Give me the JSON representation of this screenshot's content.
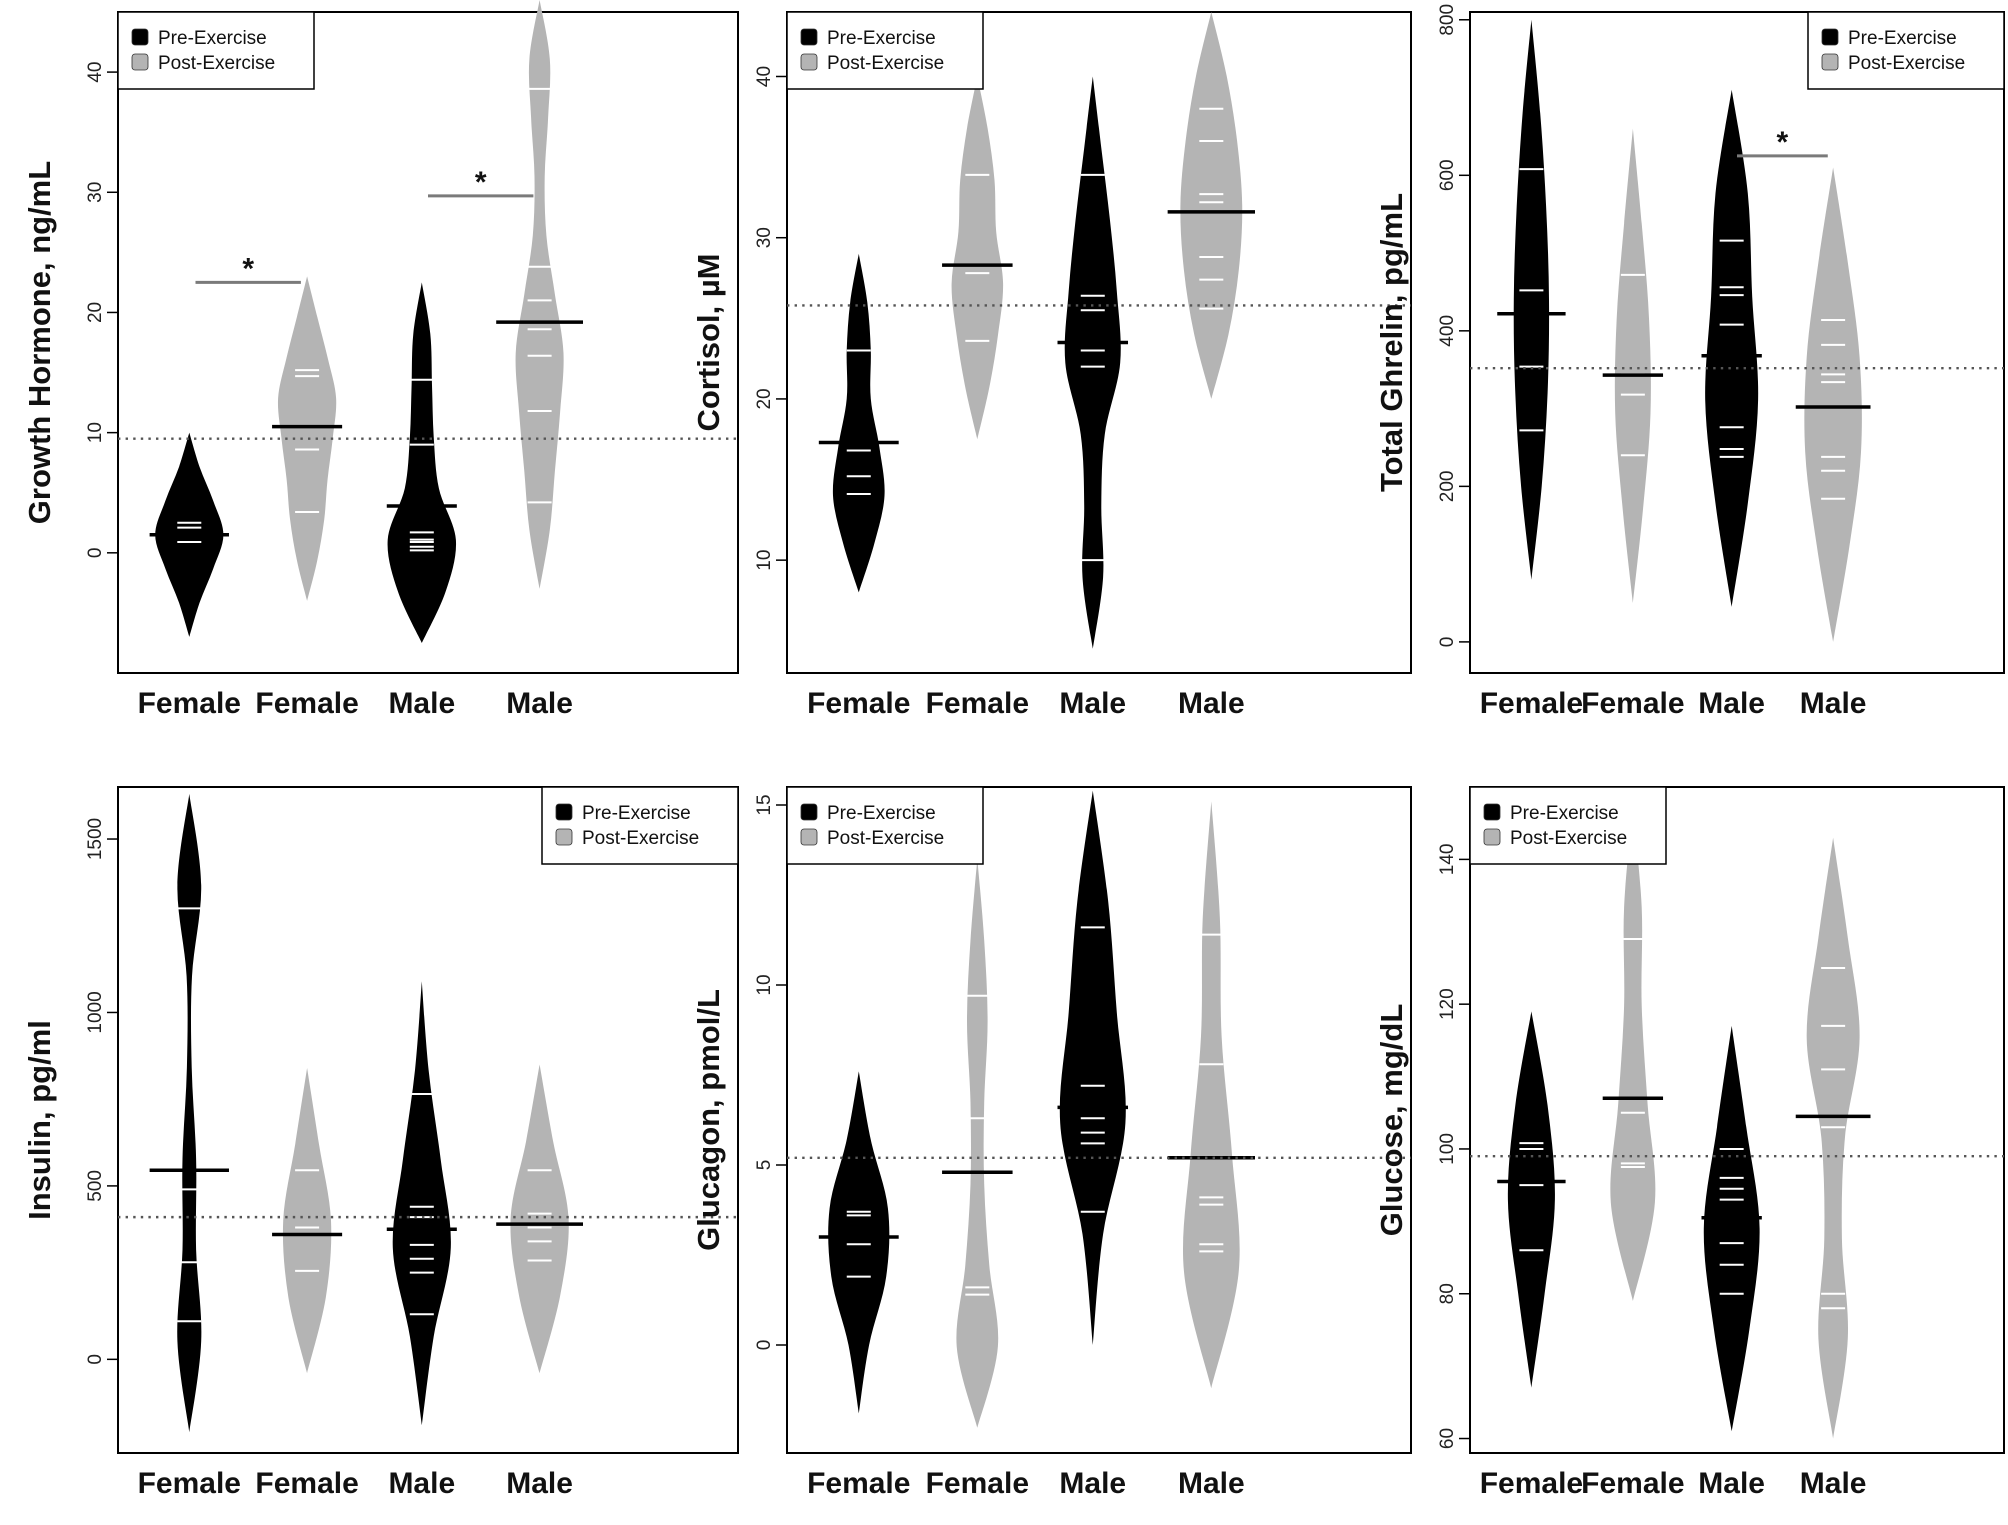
{
  "colors": {
    "pre": "#000000",
    "post": "#b4b4b4",
    "point_line": "#ffffff",
    "grand_mean": "#555555",
    "axis": "#000000"
  },
  "chart_data": [
    {
      "type": "beanplot",
      "ylabel": "Growth Hormone, ng/mL",
      "ylim": [
        -10,
        45
      ],
      "yticks": [
        0,
        10,
        20,
        30,
        40
      ],
      "legend": {
        "position": "top-left",
        "entries": [
          "Pre-Exercise",
          "Post-Exercise"
        ]
      },
      "grand_mean": 9.5,
      "categories": [
        "Female",
        "Female",
        "Male",
        "Male"
      ],
      "beans": [
        {
          "group": "Pre-Exercise",
          "mean": 1.5,
          "points": [
            0.9,
            1.5,
            2.1,
            2.5
          ],
          "range": [
            -7,
            10
          ],
          "shape": [
            0.1,
            0.3,
            0.7,
            1.0,
            0.7,
            0.3,
            0.1
          ]
        },
        {
          "group": "Post-Exercise",
          "mean": 10.5,
          "points": [
            3.4,
            8.6,
            14.7,
            15.2
          ],
          "range": [
            -4,
            23
          ],
          "shape": [
            0.1,
            0.3,
            0.5,
            0.6,
            0.75,
            0.85,
            0.6,
            0.3,
            0.1
          ]
        },
        {
          "group": "Pre-Exercise",
          "mean": 3.9,
          "points": [
            0.2,
            0.5,
            0.9,
            1.1,
            1.7,
            9.0,
            14.4
          ],
          "range": [
            -7.5,
            22.5
          ],
          "shape": [
            0.1,
            0.7,
            1.0,
            0.5,
            0.35,
            0.3,
            0.25,
            0.1
          ]
        },
        {
          "group": "Post-Exercise",
          "mean": 19.2,
          "points": [
            4.2,
            11.8,
            16.4,
            18.6,
            21.0,
            23.8,
            38.6
          ],
          "range": [
            -3,
            46
          ],
          "shape": [
            0.1,
            0.3,
            0.45,
            0.6,
            0.7,
            0.45,
            0.2,
            0.15,
            0.25,
            0.3,
            0.15
          ]
        }
      ],
      "significance": [
        {
          "between": [
            0,
            1
          ],
          "y": 22.5,
          "label": "*"
        },
        {
          "between": [
            2,
            3
          ],
          "y": 29.7,
          "label": "*"
        }
      ]
    },
    {
      "type": "beanplot",
      "ylabel": "Cortisol, µM",
      "ylim": [
        3,
        44
      ],
      "yticks": [
        10,
        20,
        30,
        40
      ],
      "legend": {
        "position": "top-left",
        "entries": [
          "Pre-Exercise",
          "Post-Exercise"
        ]
      },
      "grand_mean": 25.8,
      "categories": [
        "Female",
        "Female",
        "Male",
        "Male"
      ],
      "beans": [
        {
          "group": "Pre-Exercise",
          "mean": 17.3,
          "points": [
            14.1,
            15.2,
            16.8,
            23.0
          ],
          "range": [
            8,
            29
          ],
          "shape": [
            0.1,
            0.45,
            0.75,
            0.6,
            0.35,
            0.35,
            0.25,
            0.1
          ]
        },
        {
          "group": "Post-Exercise",
          "mean": 28.3,
          "points": [
            23.6,
            27.8,
            33.9
          ],
          "range": [
            17.5,
            40
          ],
          "shape": [
            0.1,
            0.35,
            0.6,
            0.75,
            0.55,
            0.5,
            0.3,
            0.1
          ]
        },
        {
          "group": "Pre-Exercise",
          "mean": 23.5,
          "points": [
            10.0,
            22.0,
            23.0,
            25.5,
            26.4,
            33.9
          ],
          "range": [
            4.5,
            40
          ],
          "shape": [
            0.1,
            0.3,
            0.25,
            0.35,
            0.8,
            0.7,
            0.5,
            0.25,
            0.1
          ]
        },
        {
          "group": "Post-Exercise",
          "mean": 31.6,
          "points": [
            25.6,
            27.4,
            28.8,
            32.2,
            32.7,
            36.0,
            38.0
          ],
          "range": [
            20,
            44
          ],
          "shape": [
            0.1,
            0.5,
            0.8,
            0.9,
            0.75,
            0.45,
            0.15
          ]
        }
      ],
      "significance": []
    },
    {
      "type": "beanplot",
      "ylabel": "Total Ghrelin, pg/mL",
      "ylim": [
        -40,
        810
      ],
      "yticks": [
        0,
        200,
        400,
        600,
        800
      ],
      "legend": {
        "position": "top-right",
        "entries": [
          "Pre-Exercise",
          "Post-Exercise"
        ]
      },
      "grand_mean": 352,
      "categories": [
        "Female",
        "Female",
        "Male",
        "Male"
      ],
      "beans": [
        {
          "group": "Pre-Exercise",
          "mean": 422,
          "points": [
            272,
            354,
            452,
            608
          ],
          "range": [
            80,
            800
          ],
          "shape": [
            0.1,
            0.35,
            0.55,
            0.6,
            0.5,
            0.3,
            0.1
          ]
        },
        {
          "group": "Post-Exercise",
          "mean": 343,
          "points": [
            240,
            318,
            344,
            472
          ],
          "range": [
            50,
            660
          ],
          "shape": [
            0.1,
            0.35,
            0.6,
            0.55,
            0.3,
            0.1
          ]
        },
        {
          "group": "Pre-Exercise",
          "mean": 368,
          "points": [
            238,
            248,
            276,
            408,
            446,
            456,
            516
          ],
          "range": [
            45,
            710
          ],
          "shape": [
            0.1,
            0.55,
            0.9,
            0.7,
            0.55,
            0.15
          ]
        },
        {
          "group": "Post-Exercise",
          "mean": 302,
          "points": [
            184,
            220,
            238,
            334,
            344,
            382,
            414
          ],
          "range": [
            0,
            610
          ],
          "shape": [
            0.1,
            0.55,
            0.95,
            0.9,
            0.5,
            0.1
          ]
        }
      ],
      "significance": [
        {
          "between": [
            2,
            3
          ],
          "y": 625,
          "label": "*"
        }
      ]
    },
    {
      "type": "beanplot",
      "ylabel": "Insulin, pg/ml",
      "ylim": [
        -270,
        1650
      ],
      "yticks": [
        0,
        500,
        1000,
        1500
      ],
      "legend": {
        "position": "top-right",
        "entries": [
          "Pre-Exercise",
          "Post-Exercise"
        ]
      },
      "grand_mean": 410,
      "categories": [
        "Female",
        "Female",
        "Male",
        "Male"
      ],
      "beans": [
        {
          "group": "Pre-Exercise",
          "mean": 545,
          "points": [
            110,
            280,
            490,
            1300
          ],
          "range": [
            -210,
            1630
          ],
          "shape": [
            0.1,
            0.35,
            0.2,
            0.2,
            0.07,
            0.08,
            0.35,
            0.1
          ]
        },
        {
          "group": "Post-Exercise",
          "mean": 360,
          "points": [
            255,
            380,
            545
          ],
          "range": [
            -40,
            840
          ],
          "shape": [
            0.1,
            0.55,
            0.7,
            0.35,
            0.1
          ]
        },
        {
          "group": "Pre-Exercise",
          "mean": 375,
          "points": [
            130,
            250,
            290,
            330,
            410,
            440,
            765
          ],
          "range": [
            -190,
            1090
          ],
          "shape": [
            0.1,
            0.35,
            0.85,
            0.55,
            0.2,
            0.05
          ]
        },
        {
          "group": "Post-Exercise",
          "mean": 390,
          "points": [
            285,
            340,
            380,
            420,
            545
          ],
          "range": [
            -40,
            850
          ],
          "shape": [
            0.1,
            0.6,
            0.85,
            0.4,
            0.1
          ]
        }
      ],
      "significance": []
    },
    {
      "type": "beanplot",
      "ylabel": "Glucagon, pmol/L",
      "ylim": [
        -3,
        15.5
      ],
      "yticks": [
        0,
        5,
        10,
        15
      ],
      "legend": {
        "position": "top-left",
        "entries": [
          "Pre-Exercise",
          "Post-Exercise"
        ]
      },
      "grand_mean": 5.2,
      "categories": [
        "Female",
        "Female",
        "Male",
        "Male"
      ],
      "beans": [
        {
          "group": "Pre-Exercise",
          "mean": 3.0,
          "points": [
            1.9,
            2.8,
            3.6,
            3.7
          ],
          "range": [
            -1.9,
            7.6
          ],
          "shape": [
            0.1,
            0.3,
            0.8,
            0.85,
            0.35,
            0.1
          ]
        },
        {
          "group": "Post-Exercise",
          "mean": 4.8,
          "points": [
            1.4,
            1.6,
            6.3,
            9.7
          ],
          "range": [
            -2.3,
            13.5
          ],
          "shape": [
            0.1,
            0.6,
            0.35,
            0.2,
            0.2,
            0.3,
            0.2,
            0.1
          ]
        },
        {
          "group": "Pre-Exercise",
          "mean": 6.6,
          "points": [
            3.7,
            5.6,
            5.9,
            6.3,
            7.2,
            11.6
          ],
          "range": [
            0,
            15.4
          ],
          "shape": [
            0.1,
            0.3,
            0.95,
            0.7,
            0.45,
            0.2
          ]
        },
        {
          "group": "Post-Exercise",
          "mean": 5.2,
          "points": [
            2.6,
            2.8,
            3.9,
            4.1,
            7.8,
            11.4
          ],
          "range": [
            -1.2,
            15.1
          ],
          "shape": [
            0.1,
            0.8,
            0.6,
            0.3,
            0.25,
            0.1
          ]
        }
      ],
      "significance": []
    },
    {
      "type": "beanplot",
      "ylabel": "Glucose, mg/dL",
      "ylim": [
        58,
        150
      ],
      "yticks": [
        60,
        80,
        100,
        120,
        140
      ],
      "legend": {
        "position": "top-left",
        "entries": [
          "Pre-Exercise",
          "Post-Exercise"
        ]
      },
      "grand_mean": 99,
      "categories": [
        "Female",
        "Female",
        "Male",
        "Male"
      ],
      "beans": [
        {
          "group": "Pre-Exercise",
          "mean": 95.5,
          "points": [
            86,
            95,
            100,
            100.8
          ],
          "range": [
            67,
            119
          ],
          "shape": [
            0.1,
            0.45,
            0.8,
            0.55,
            0.1
          ]
        },
        {
          "group": "Post-Exercise",
          "mean": 107,
          "points": [
            97.5,
            98,
            105,
            129
          ],
          "range": [
            79,
            147
          ],
          "shape": [
            0.1,
            0.75,
            0.5,
            0.3,
            0.3,
            0.1
          ]
        },
        {
          "group": "Pre-Exercise",
          "mean": 90.5,
          "points": [
            80,
            84,
            87,
            93,
            94.5,
            96,
            100
          ],
          "range": [
            61,
            117
          ],
          "shape": [
            0.1,
            0.6,
            0.95,
            0.5,
            0.1
          ]
        },
        {
          "group": "Post-Exercise",
          "mean": 104.5,
          "points": [
            78,
            80,
            103,
            111,
            117,
            125
          ],
          "range": [
            60,
            143
          ],
          "shape": [
            0.1,
            0.5,
            0.3,
            0.4,
            0.9,
            0.5,
            0.1
          ]
        }
      ],
      "significance": []
    }
  ]
}
